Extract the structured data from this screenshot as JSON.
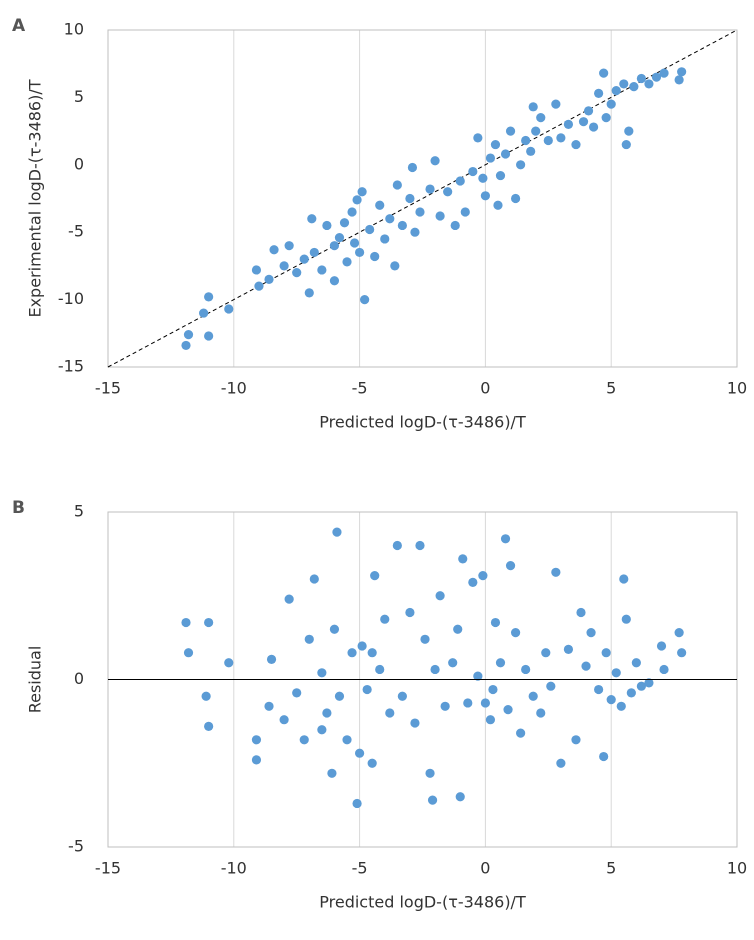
{
  "chart_data": [
    {
      "type": "scatter",
      "panel": "A",
      "x_label": "Predicted logD-(τ-3486)/T",
      "y_label": "Experimental logD-(τ-3486)/T",
      "color": "#5b9bd5",
      "xlim": [
        -15,
        10
      ],
      "ylim": [
        -15,
        10
      ],
      "xticks": [
        -15,
        -10,
        -5,
        0,
        5,
        10
      ],
      "yticks": [
        -15,
        -10,
        -5,
        0,
        5,
        10
      ],
      "grid": "x",
      "diagonal": true,
      "x": [
        -11.9,
        -11.8,
        -11.2,
        -11,
        -11,
        -10.2,
        -9.1,
        -9,
        -8.6,
        -8.4,
        -8,
        -7.8,
        -7.5,
        -7.2,
        -7,
        -6.8,
        -6.5,
        -6.3,
        -6,
        -6,
        -5.8,
        -5.6,
        -5.5,
        -5.3,
        -5.2,
        -5,
        -4.9,
        -4.8,
        -4.6,
        -4.4,
        -4.2,
        -4,
        -3.8,
        -3.6,
        -3.5,
        -3.3,
        -3,
        -2.8,
        -2.6,
        -2.2,
        -2,
        -1.8,
        -1.5,
        -1.2,
        -1,
        -0.8,
        -0.5,
        -0.3,
        -0.1,
        0,
        0.2,
        0.4,
        0.6,
        0.8,
        1,
        1.2,
        1.4,
        1.6,
        1.8,
        2,
        2.2,
        2.5,
        2.8,
        3,
        3.3,
        3.6,
        3.9,
        4.1,
        4.3,
        4.5,
        4.7,
        4.8,
        5,
        5.2,
        5.5,
        5.7,
        5.9,
        6.2,
        6.5,
        6.8,
        7.1,
        7.7,
        7.8,
        -6.9,
        -5.1,
        -2.9,
        0.5,
        1.9,
        5.6
      ],
      "values": [
        -13.4,
        -12.6,
        -11,
        -9.8,
        -12.7,
        -10.7,
        -7.8,
        -9,
        -8.5,
        -6.3,
        -7.5,
        -6,
        -8,
        -7,
        -9.5,
        -6.5,
        -7.8,
        -4.5,
        -8.6,
        -6,
        -5.4,
        -4.3,
        -7.2,
        -3.5,
        -5.8,
        -6.5,
        -2,
        -10,
        -4.8,
        -6.8,
        -3,
        -5.5,
        -4,
        -7.5,
        -1.5,
        -4.5,
        -2.5,
        -5,
        -3.5,
        -1.8,
        0.3,
        -3.8,
        -2,
        -4.5,
        -1.2,
        -3.5,
        -0.5,
        2,
        -1,
        -2.3,
        0.5,
        1.5,
        -0.8,
        0.8,
        2.5,
        -2.5,
        0,
        1.8,
        1,
        2.5,
        3.5,
        1.8,
        4.5,
        2,
        3,
        1.5,
        3.2,
        4,
        2.8,
        5.3,
        6.8,
        3.5,
        4.5,
        5.5,
        6,
        2.5,
        5.8,
        6.4,
        6,
        6.5,
        6.8,
        6.3,
        6.9,
        -4,
        -2.6,
        -0.2,
        -3,
        4.3,
        1.5
      ]
    },
    {
      "type": "scatter",
      "panel": "B",
      "x_label": "Predicted logD-(τ-3486)/T",
      "y_label": "Residual",
      "color": "#5b9bd5",
      "xlim": [
        -15,
        10
      ],
      "ylim": [
        -5,
        5
      ],
      "xticks": [
        -15,
        -10,
        -5,
        0,
        5,
        10
      ],
      "yticks": [
        -5,
        0,
        5
      ],
      "grid": "x",
      "zero_line": true,
      "x": [
        -11.9,
        -11.8,
        -11.1,
        -11,
        -11,
        -10.2,
        -9.1,
        -9.1,
        -8.6,
        -8.5,
        -8,
        -7.8,
        -7.5,
        -7.2,
        -7,
        -6.8,
        -6.5,
        -6.3,
        -6.1,
        -6,
        -5.9,
        -5.8,
        -5.5,
        -5.3,
        -5.1,
        -5,
        -4.9,
        -4.7,
        -4.5,
        -4.4,
        -4.2,
        -4,
        -3.8,
        -3.5,
        -3.3,
        -3,
        -2.8,
        -2.6,
        -2.4,
        -2.2,
        -2.1,
        -2,
        -1.8,
        -1.6,
        -1.3,
        -1.1,
        -1,
        -0.9,
        -0.7,
        -0.5,
        -0.3,
        -0.1,
        0,
        0.2,
        0.4,
        0.6,
        0.8,
        0.9,
        1,
        1.2,
        1.4,
        1.6,
        1.9,
        2.2,
        2.4,
        2.6,
        2.8,
        3,
        3.3,
        3.6,
        3.8,
        4,
        4.2,
        4.5,
        4.7,
        4.8,
        5,
        5.2,
        5.5,
        5.6,
        5.8,
        6,
        6.2,
        6.5,
        7,
        7.1,
        7.7,
        7.8,
        -6.5,
        -4.5,
        0.3,
        5.4
      ],
      "values": [
        1.7,
        0.8,
        -0.5,
        1.7,
        -1.4,
        0.5,
        -2.4,
        -1.8,
        -0.8,
        0.6,
        -1.2,
        2.4,
        -0.4,
        -1.8,
        1.2,
        3,
        0.2,
        -1,
        -2.8,
        1.5,
        4.4,
        -0.5,
        -1.8,
        0.8,
        -3.7,
        -2.2,
        1,
        -0.3,
        -2.5,
        3.1,
        0.3,
        1.8,
        -1,
        4,
        -0.5,
        2,
        -1.3,
        4,
        1.2,
        -2.8,
        -3.6,
        0.3,
        2.5,
        -0.8,
        0.5,
        1.5,
        -3.5,
        3.6,
        -0.7,
        2.9,
        0.1,
        3.1,
        -0.7,
        -1.2,
        1.7,
        0.5,
        4.2,
        -0.9,
        3.4,
        1.4,
        -1.6,
        0.3,
        -0.5,
        -1,
        0.8,
        -0.2,
        3.2,
        -2.5,
        0.9,
        -1.8,
        2,
        0.4,
        1.4,
        -0.3,
        -2.3,
        0.8,
        -0.6,
        0.2,
        3,
        1.8,
        -0.4,
        0.5,
        -0.2,
        -0.1,
        1,
        0.3,
        1.4,
        0.8,
        -1.5,
        0.8,
        -0.3,
        -0.8
      ]
    }
  ]
}
